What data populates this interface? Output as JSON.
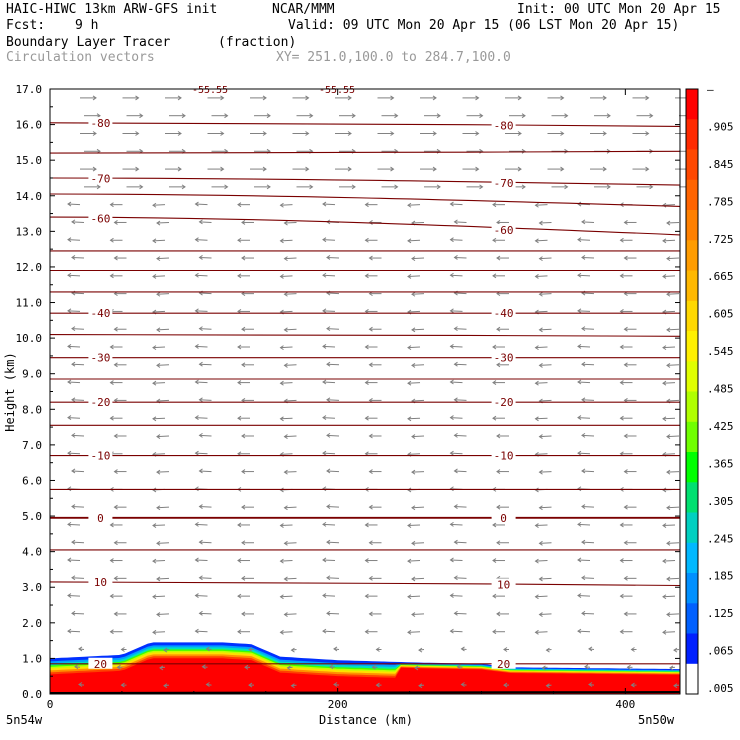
{
  "header": {
    "model": "HAIC-HIWC 13km ARW-GFS init",
    "org": "NCAR/MMM",
    "init": "Init: 00 UTC Mon 20 Apr 15",
    "fcst_label": "Fcst:",
    "fcst_value": "9 h",
    "valid": "Valid: 09 UTC Mon 20 Apr 15 (06 LST Mon 20 Apr 15)",
    "field": "Boundary Layer Tracer",
    "units": "(fraction)",
    "overlay": "Circulation vectors",
    "xsection": "XY= 251.0,100.0 to 284.7,100.0"
  },
  "axes": {
    "ylabel": "Height (km)",
    "xlabel": "Distance (km)",
    "left_end_label": "5n54w",
    "right_end_label": "5n50w",
    "y_ticks": [
      "0.0",
      "1.0",
      "2.0",
      "3.0",
      "4.0",
      "5.0",
      "6.0",
      "7.0",
      "8.0",
      "9.0",
      "10.0",
      "11.0",
      "12.0",
      "13.0",
      "14.0",
      "15.0",
      "16.0",
      "17.0"
    ],
    "x_ticks": [
      "0",
      "200",
      "400"
    ]
  },
  "colorbar": {
    "labels": [
      "–",
      ".905",
      ".845",
      ".785",
      ".725",
      ".665",
      ".605",
      ".545",
      ".485",
      ".425",
      ".365",
      ".305",
      ".245",
      ".185",
      ".125",
      ".065",
      ".005"
    ],
    "colors": [
      "#ff0000",
      "#ff2a00",
      "#ff4800",
      "#ff6400",
      "#ff8000",
      "#ff9c00",
      "#ffb800",
      "#ffd800",
      "#fff000",
      "#e0ff00",
      "#b0ff00",
      "#70ff00",
      "#00ff00",
      "#00e070",
      "#00d0c0",
      "#00b8ff",
      "#0090ff",
      "#0060ff",
      "#0020ff",
      "#ffffff"
    ]
  },
  "chart_data": {
    "type": "cross-section",
    "xlim": [
      0,
      438
    ],
    "ylim": [
      0,
      17
    ],
    "contours": [
      {
        "label": "-80",
        "y_left": 16.05,
        "y_right": 15.95
      },
      {
        "label": "",
        "y_left": 15.2,
        "y_right": 15.25
      },
      {
        "label": "-70",
        "y_left": 14.5,
        "y_right": 14.3
      },
      {
        "label": "",
        "y_left": 14.05,
        "y_right": 13.7
      },
      {
        "label": "-60",
        "y_left": 13.4,
        "y_right": 12.9
      },
      {
        "label": "",
        "y_left": 12.45,
        "y_right": 12.45
      },
      {
        "label": "",
        "y_left": 11.9,
        "y_right": 11.9
      },
      {
        "label": "",
        "y_left": 11.3,
        "y_right": 11.3
      },
      {
        "label": "-40",
        "y_left": 10.7,
        "y_right": 10.7
      },
      {
        "label": "",
        "y_left": 10.1,
        "y_right": 10.05
      },
      {
        "label": "-30",
        "y_left": 9.45,
        "y_right": 9.45
      },
      {
        "label": "",
        "y_left": 8.85,
        "y_right": 8.85
      },
      {
        "label": "-20",
        "y_left": 8.2,
        "y_right": 8.2
      },
      {
        "label": "",
        "y_left": 7.55,
        "y_right": 7.55
      },
      {
        "label": "-10",
        "y_left": 6.7,
        "y_right": 6.7
      },
      {
        "label": "",
        "y_left": 5.75,
        "y_right": 5.75
      },
      {
        "label": "0",
        "y_left": 4.95,
        "y_right": 4.95
      },
      {
        "label": "",
        "y_left": 4.05,
        "y_right": 4.05
      },
      {
        "label": "10",
        "y_left": 3.15,
        "y_right": 3.05
      },
      {
        "label": "20",
        "y_left": 0.85,
        "y_right": 0.85
      }
    ],
    "contour_annotations": [
      "-55.55",
      "-55.55"
    ],
    "tracer_top_km": [
      [
        0,
        1.0
      ],
      [
        50,
        1.1
      ],
      [
        70,
        1.45
      ],
      [
        120,
        1.45
      ],
      [
        140,
        1.4
      ],
      [
        160,
        1.05
      ],
      [
        200,
        0.95
      ],
      [
        260,
        0.88
      ],
      [
        300,
        0.85
      ],
      [
        320,
        0.75
      ],
      [
        438,
        0.7
      ]
    ]
  }
}
